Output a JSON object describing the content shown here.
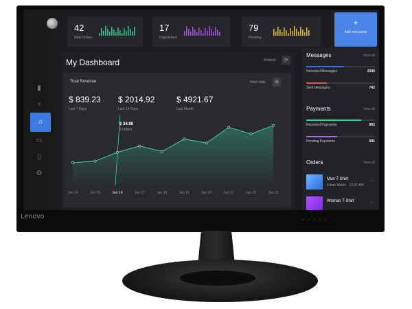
{
  "brand": "Lenovo",
  "sidebar": {
    "icons": [
      "bar-chart-icon",
      "trophy-icon",
      "basket-icon",
      "chat-icon",
      "document-icon",
      "settings-icon"
    ],
    "active": "basket-icon"
  },
  "top_cards": [
    {
      "value": "42",
      "label": "New Orders",
      "color": "#2fbf8a"
    },
    {
      "value": "17",
      "label": "Dispatched",
      "color": "#a24fd8"
    },
    {
      "value": "79",
      "label": "Pending",
      "color": "#d8b62c"
    }
  ],
  "add_panel": {
    "icon": "+",
    "label": "Add new panel",
    "color": "#4a84e8"
  },
  "main": {
    "title": "My Dashboard",
    "refresh_label": "Refresh"
  },
  "revenue": {
    "title": "Total Revenue",
    "filter_label": "Filter stats",
    "stats": [
      {
        "value": "$ 839.23",
        "label": "Last 7 Days"
      },
      {
        "value": "$ 2014.92",
        "label": "Last 14 Days"
      },
      {
        "value": "$ 4921.67",
        "label": "Last Month"
      }
    ],
    "tooltip": {
      "value": "$ 34.88",
      "sub": "3 orders"
    }
  },
  "chart_data": {
    "type": "area",
    "x": [
      "Jan 14",
      "Jan 15",
      "Jan 16",
      "Jan 17",
      "Jan 18",
      "Jan 19",
      "Jan 20",
      "Jan 21",
      "Jan 22",
      "Jan 23"
    ],
    "values": [
      50,
      57,
      95,
      122,
      98,
      152,
      135,
      202,
      174,
      210
    ],
    "color": "#3ad4a0",
    "highlight": "Jan 16"
  },
  "messages": {
    "title": "Messages",
    "view_all": "View all",
    "items": [
      {
        "label": "Received Messages",
        "value": "2345",
        "fill": 0.55,
        "color": "#3b6fe0"
      },
      {
        "label": "Sent Messages",
        "value": "742",
        "fill": 0.3,
        "color": "#e05555"
      }
    ]
  },
  "payments": {
    "title": "Payments",
    "view_all": "View all",
    "items": [
      {
        "label": "Received Payments",
        "value": "892",
        "fill": 0.8,
        "color": "#2fd39a"
      },
      {
        "label": "Pending Payments",
        "value": "591",
        "fill": 0.45,
        "color": "#b06ae0"
      }
    ]
  },
  "orders": {
    "title": "Orders",
    "view_all": "View all",
    "items": [
      {
        "name": "Man T-Shirt",
        "sub": "Ethan Mattie · 12:37 AM"
      },
      {
        "name": "Woman T-Shirt",
        "sub": ""
      }
    ]
  }
}
